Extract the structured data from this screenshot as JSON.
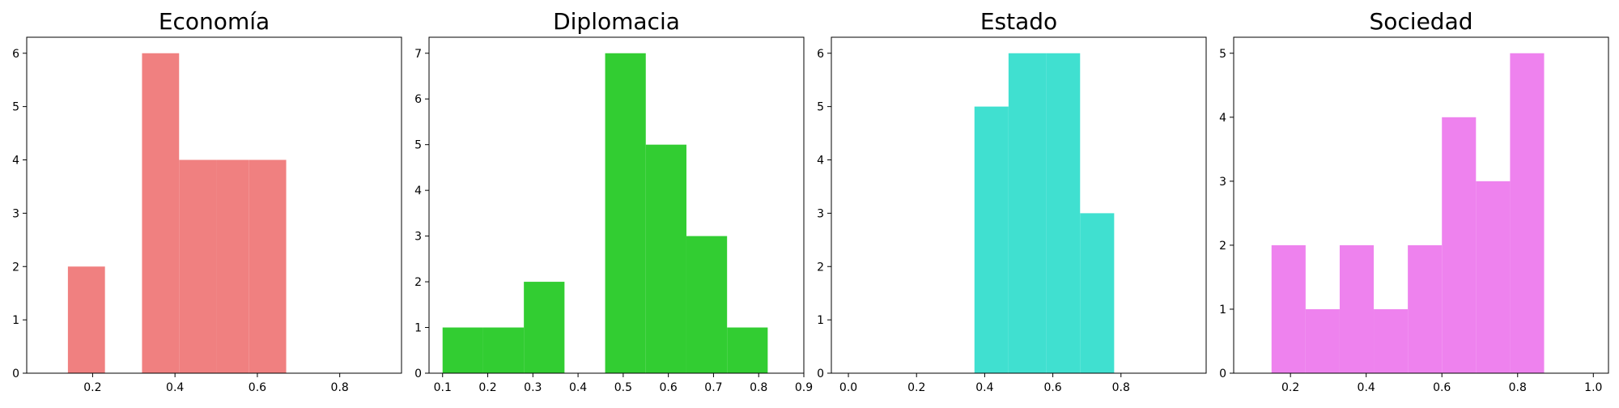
{
  "chart_data": [
    {
      "type": "bar",
      "title": "Economía",
      "color": "#f08080",
      "xlim": [
        0.04,
        0.95
      ],
      "ylim": [
        0,
        6.3
      ],
      "xticks": [
        0.2,
        0.4,
        0.6,
        0.8
      ],
      "xtick_labels": [
        "0.2",
        "0.4",
        "0.6",
        "0.8"
      ],
      "yticks": [
        0,
        1,
        2,
        3,
        4,
        5,
        6
      ],
      "ytick_labels": [
        "0",
        "1",
        "2",
        "3",
        "4",
        "5",
        "6"
      ],
      "bins": [
        {
          "x0": 0.14,
          "x1": 0.23,
          "count": 2
        },
        {
          "x0": 0.23,
          "x1": 0.32,
          "count": 0
        },
        {
          "x0": 0.32,
          "x1": 0.41,
          "count": 6
        },
        {
          "x0": 0.41,
          "x1": 0.5,
          "count": 4
        },
        {
          "x0": 0.5,
          "x1": 0.58,
          "count": 4
        },
        {
          "x0": 0.58,
          "x1": 0.67,
          "count": 4
        }
      ]
    },
    {
      "type": "bar",
      "title": "Diplomacia",
      "color": "#32cd32",
      "xlim": [
        0.07,
        0.9
      ],
      "ylim": [
        0,
        7.35
      ],
      "xticks": [
        0.1,
        0.2,
        0.3,
        0.4,
        0.5,
        0.6,
        0.7,
        0.8,
        0.9
      ],
      "xtick_labels": [
        "0.1",
        "0.2",
        "0.3",
        "0.4",
        "0.5",
        "0.6",
        "0.7",
        "0.8",
        "0.9"
      ],
      "yticks": [
        0,
        1,
        2,
        3,
        4,
        5,
        6,
        7
      ],
      "ytick_labels": [
        "0",
        "1",
        "2",
        "3",
        "4",
        "5",
        "6",
        "7"
      ],
      "bins": [
        {
          "x0": 0.1,
          "x1": 0.19,
          "count": 1
        },
        {
          "x0": 0.19,
          "x1": 0.28,
          "count": 1
        },
        {
          "x0": 0.28,
          "x1": 0.37,
          "count": 2
        },
        {
          "x0": 0.37,
          "x1": 0.46,
          "count": 0
        },
        {
          "x0": 0.46,
          "x1": 0.55,
          "count": 7
        },
        {
          "x0": 0.55,
          "x1": 0.64,
          "count": 5
        },
        {
          "x0": 0.64,
          "x1": 0.73,
          "count": 3
        },
        {
          "x0": 0.73,
          "x1": 0.82,
          "count": 1
        }
      ]
    },
    {
      "type": "bar",
      "title": "Estado",
      "color": "#40e0d0",
      "xlim": [
        -0.05,
        1.05
      ],
      "ylim": [
        0,
        6.3
      ],
      "xticks": [
        0.0,
        0.2,
        0.4,
        0.6,
        0.8
      ],
      "xtick_labels": [
        "0.0",
        "0.2",
        "0.4",
        "0.6",
        "0.8"
      ],
      "yticks": [
        0,
        1,
        2,
        3,
        4,
        5,
        6
      ],
      "ytick_labels": [
        "0",
        "1",
        "2",
        "3",
        "4",
        "5",
        "6"
      ],
      "bins": [
        {
          "x0": 0.37,
          "x1": 0.47,
          "count": 5
        },
        {
          "x0": 0.47,
          "x1": 0.58,
          "count": 6
        },
        {
          "x0": 0.58,
          "x1": 0.68,
          "count": 6
        },
        {
          "x0": 0.68,
          "x1": 0.78,
          "count": 3
        }
      ]
    },
    {
      "type": "bar",
      "title": "Sociedad",
      "color": "#ee82ee",
      "xlim": [
        0.05,
        1.04
      ],
      "ylim": [
        0,
        5.25
      ],
      "xticks": [
        0.2,
        0.4,
        0.6,
        0.8,
        1.0
      ],
      "xtick_labels": [
        "0.2",
        "0.4",
        "0.6",
        "0.8",
        "1.0"
      ],
      "yticks": [
        0,
        1,
        2,
        3,
        4,
        5
      ],
      "ytick_labels": [
        "0",
        "1",
        "2",
        "3",
        "4",
        "5"
      ],
      "bins": [
        {
          "x0": 0.15,
          "x1": 0.24,
          "count": 2
        },
        {
          "x0": 0.24,
          "x1": 0.33,
          "count": 1
        },
        {
          "x0": 0.33,
          "x1": 0.42,
          "count": 2
        },
        {
          "x0": 0.42,
          "x1": 0.51,
          "count": 1
        },
        {
          "x0": 0.51,
          "x1": 0.6,
          "count": 2
        },
        {
          "x0": 0.6,
          "x1": 0.69,
          "count": 4
        },
        {
          "x0": 0.69,
          "x1": 0.78,
          "count": 3
        },
        {
          "x0": 0.78,
          "x1": 0.87,
          "count": 5
        }
      ]
    }
  ]
}
